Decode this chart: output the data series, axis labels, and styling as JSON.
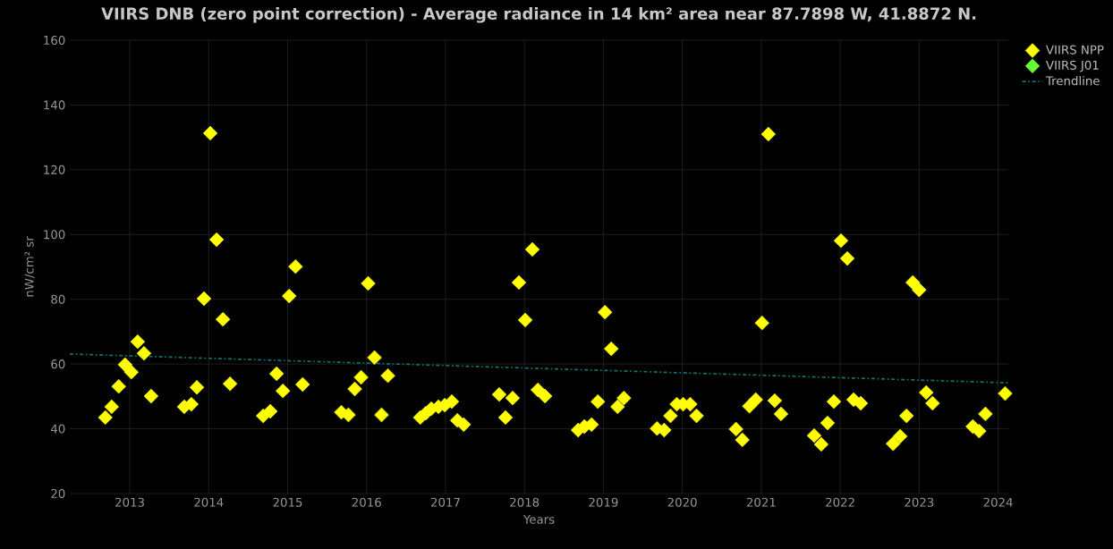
{
  "chart_data": {
    "type": "scatter",
    "title": "VIIRS DNB (zero point correction) - Average radiance in 14 km² area near 87.7898 W, 41.8872 N.",
    "xlabel": "Years",
    "ylabel": "nW/cm² sr",
    "xlim": [
      2012.24,
      2024.13
    ],
    "ylim": [
      20,
      160
    ],
    "xticks": [
      2013,
      2014,
      2015,
      2016,
      2017,
      2018,
      2019,
      2020,
      2021,
      2022,
      2023,
      2024
    ],
    "yticks": [
      20,
      40,
      60,
      80,
      100,
      120,
      140,
      160
    ],
    "grid": true,
    "legend": "top right",
    "marker": "diamond",
    "series": [
      {
        "name": "VIIRS NPP",
        "color": "#ffff00",
        "x": [
          2012.69,
          2012.77,
          2012.86,
          2012.94,
          2013.02,
          2013.1,
          2013.18,
          2013.27,
          2013.69,
          2013.78,
          2013.85,
          2013.94,
          2014.02,
          2014.1,
          2014.18,
          2014.27,
          2014.69,
          2014.78,
          2014.86,
          2014.94,
          2015.02,
          2015.1,
          2015.19,
          2015.68,
          2015.77,
          2015.85,
          2015.93,
          2016.02,
          2016.1,
          2016.19,
          2016.27,
          2016.68,
          2016.75,
          2016.82,
          2016.91,
          2016.99,
          2017.08,
          2017.15,
          2017.23,
          2017.68,
          2017.76,
          2017.85,
          2017.93,
          2018.01,
          2018.1,
          2018.17,
          2018.26,
          2018.68,
          2018.76,
          2018.85,
          2018.93,
          2019.02,
          2019.1,
          2019.18,
          2019.26,
          2019.68,
          2019.77,
          2019.85,
          2019.93,
          2020.01,
          2020.1,
          2020.18,
          2020.68,
          2020.76,
          2020.85,
          2020.93,
          2021.01,
          2021.09,
          2021.17,
          2021.25,
          2021.67,
          2021.76,
          2021.84,
          2021.92,
          2022.01,
          2022.09,
          2022.17,
          2022.26,
          2022.67,
          2022.76,
          2022.84,
          2022.92,
          2023.0,
          2023.09,
          2023.17,
          2023.68,
          2023.76,
          2023.84,
          2024.09
        ],
        "values": [
          43.5,
          46.8,
          53.1,
          59.8,
          57.5,
          66.9,
          63.3,
          50.1,
          46.8,
          47.6,
          52.8,
          80.2,
          131.3,
          98.4,
          73.8,
          53.9,
          44.0,
          45.4,
          57.0,
          51.7,
          81.0,
          90.1,
          53.7,
          45.1,
          44.3,
          52.3,
          55.9,
          84.9,
          62.0,
          44.3,
          56.4,
          43.5,
          44.8,
          46.2,
          46.8,
          47.3,
          48.4,
          42.6,
          41.3,
          50.6,
          43.5,
          49.5,
          85.2,
          73.6,
          95.4,
          52.0,
          50.1,
          39.6,
          40.7,
          41.3,
          48.4,
          76.0,
          64.7,
          46.8,
          49.5,
          40.1,
          39.6,
          44.0,
          47.6,
          47.6,
          47.6,
          44.0,
          39.9,
          36.6,
          47.0,
          49.0,
          72.7,
          131.0,
          48.7,
          44.6,
          37.9,
          35.2,
          41.8,
          48.4,
          98.1,
          92.6,
          49.0,
          47.9,
          35.4,
          37.7,
          44.0,
          85.2,
          82.9,
          51.2,
          47.9,
          40.7,
          39.3,
          44.6,
          50.9
        ]
      },
      {
        "name": "VIIRS J01",
        "color": "#66ff33"
      },
      {
        "name": "Trendline",
        "type": "line",
        "color": "#0e7070",
        "marker": "none",
        "line_style": "dashed",
        "x": [
          2012.24,
          2024.13
        ],
        "values": [
          63.1,
          54.2
        ]
      }
    ]
  }
}
